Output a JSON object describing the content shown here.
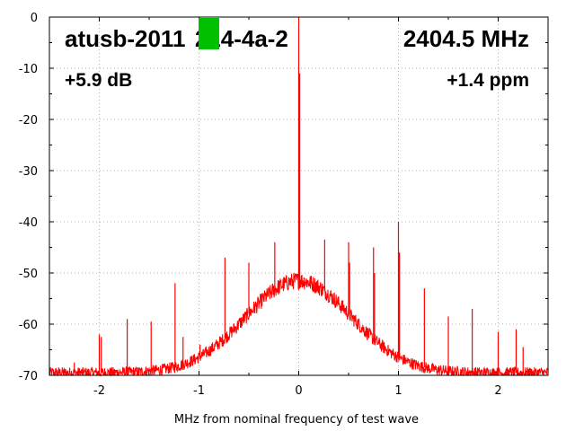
{
  "chart_data": {
    "type": "line",
    "title": "atusb-2011  214-4a-2",
    "frequency": "2404.5 MHz",
    "level": "+5.9 dB",
    "offset": "+1.4 ppm",
    "xlabel": "MHz from nominal frequency of test wave",
    "ylabel": "",
    "xlim": [
      -2.5,
      2.5
    ],
    "ylim": [
      -70,
      0
    ],
    "x_ticks": [
      -2,
      -1,
      0,
      1,
      2
    ],
    "x_tick_labels": [
      "-2",
      "-1",
      "0",
      "1",
      "2"
    ],
    "y_ticks": [
      0,
      -10,
      -20,
      -30,
      -40,
      -50,
      -60,
      -70
    ],
    "y_tick_labels": [
      "0",
      "-10",
      "-20",
      "-30",
      "-40",
      "-50",
      "-60",
      "-70"
    ],
    "grid": true,
    "series_color": "#ff0000",
    "status_color": "#00c000",
    "noise_floor_db": -69.5,
    "noise_hump": {
      "center": 0,
      "peak_db": -51.5,
      "width_mhz": 0.75
    },
    "spurs": [
      {
        "x": -2.25,
        "y": -67.5
      },
      {
        "x": -2.0,
        "y": -62
      },
      {
        "x": -1.98,
        "y": -62.5
      },
      {
        "x": -1.72,
        "y": -59
      },
      {
        "x": -1.48,
        "y": -59.5
      },
      {
        "x": -1.24,
        "y": -52
      },
      {
        "x": -1.16,
        "y": -62.5
      },
      {
        "x": -0.99,
        "y": -64
      },
      {
        "x": -0.74,
        "y": -47
      },
      {
        "x": -0.5,
        "y": -48
      },
      {
        "x": -0.24,
        "y": -44
      },
      {
        "x": 0.0,
        "y": 0
      },
      {
        "x": 0.01,
        "y": -11
      },
      {
        "x": 0.26,
        "y": -43.5
      },
      {
        "x": 0.5,
        "y": -44
      },
      {
        "x": 0.51,
        "y": -48
      },
      {
        "x": 0.75,
        "y": -45
      },
      {
        "x": 0.76,
        "y": -50
      },
      {
        "x": 1.0,
        "y": -40
      },
      {
        "x": 1.01,
        "y": -46
      },
      {
        "x": 1.26,
        "y": -53
      },
      {
        "x": 1.5,
        "y": -58.5
      },
      {
        "x": 1.74,
        "y": -57
      },
      {
        "x": 2.0,
        "y": -61.5
      },
      {
        "x": 2.18,
        "y": -61
      },
      {
        "x": 2.25,
        "y": -64.5
      }
    ]
  }
}
